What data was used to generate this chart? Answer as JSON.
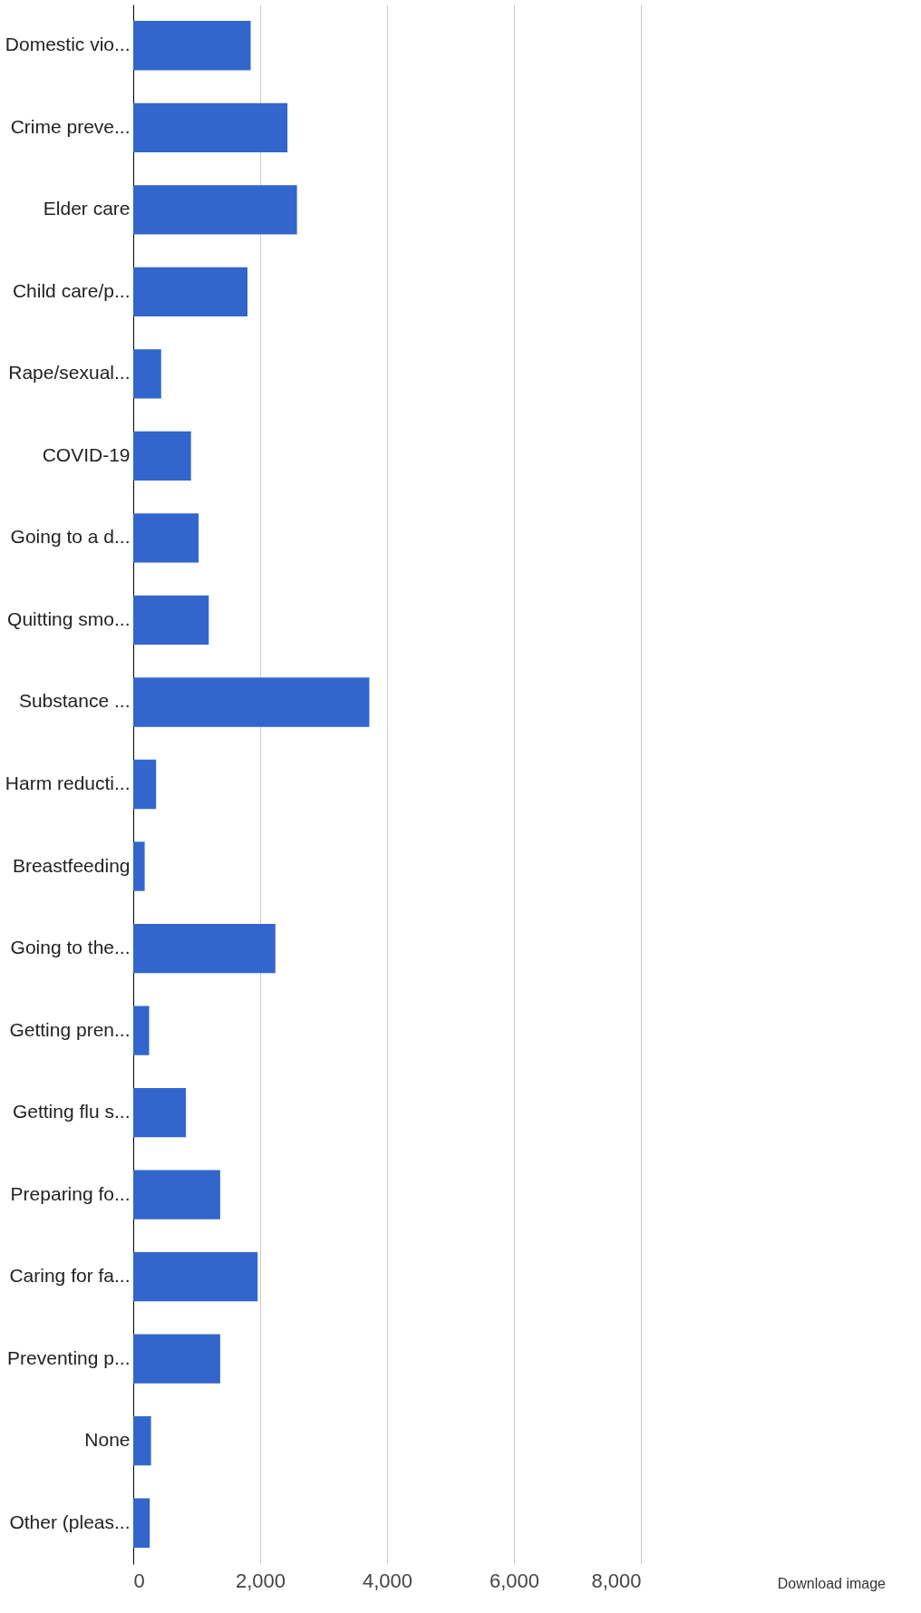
{
  "chart_data": {
    "type": "bar",
    "orientation": "horizontal",
    "categories": [
      "Domestic vio...",
      "Crime preve...",
      "Elder care",
      "Child care/p...",
      "Rape/sexual...",
      "COVID-19",
      "Going to a d...",
      "Quitting smo...",
      "Substance ...",
      "Harm reducti...",
      "Breastfeeding",
      "Going to the...",
      "Getting pren...",
      "Getting flu s...",
      "Preparing fo...",
      "Caring for fa...",
      "Preventing p...",
      "None",
      "Other (pleas..."
    ],
    "values": [
      1850,
      2430,
      2580,
      1800,
      440,
      910,
      1030,
      1190,
      3720,
      360,
      180,
      2240,
      250,
      830,
      1370,
      1960,
      1370,
      280,
      260
    ],
    "color": "#3366cc",
    "xlim": [
      0,
      8000
    ],
    "xticks": [
      0,
      {
        "value": 2000,
        "label": "2,000"
      },
      {
        "value": 4000,
        "label": "4,000"
      },
      {
        "value": 6000,
        "label": "6,000"
      },
      {
        "value": 8000,
        "label": "8,000"
      }
    ],
    "grid": "x",
    "annotations": [
      "Download image"
    ]
  }
}
